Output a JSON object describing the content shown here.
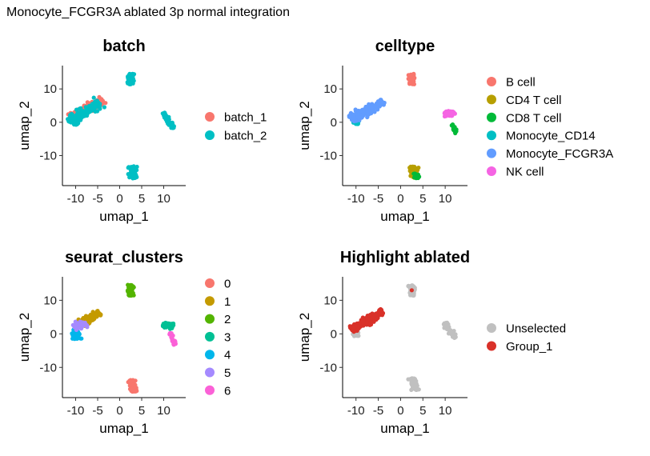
{
  "title": "Monocyte_FCGR3A ablated 3p normal integration",
  "chart_data": [
    {
      "type": "scatter",
      "title": "batch",
      "xlabel": "umap_1",
      "ylabel": "umap_2",
      "xlim": [
        -13,
        15
      ],
      "ylim": [
        -19,
        17
      ],
      "xticks": [
        -10,
        -5,
        0,
        5,
        10
      ],
      "yticks": [
        -10,
        0,
        10
      ],
      "legend_position": "right",
      "series": [
        {
          "name": "batch_1",
          "color": "#F8766D"
        },
        {
          "name": "batch_2",
          "color": "#00BFC4"
        }
      ],
      "clusters": [
        {
          "x": -7.5,
          "y": 4.0,
          "series": "batch_1"
        },
        {
          "x": -8.0,
          "y": 3.0,
          "series": "batch_2"
        },
        {
          "x": -10.0,
          "y": 0.5,
          "series": "batch_2"
        },
        {
          "x": 2.5,
          "y": 13.0,
          "series": "batch_2"
        },
        {
          "x": 11.0,
          "y": 0.5,
          "series": "batch_2"
        },
        {
          "x": 3.0,
          "y": -15.0,
          "series": "batch_2"
        }
      ]
    },
    {
      "type": "scatter",
      "title": "celltype",
      "xlabel": "umap_1",
      "ylabel": "umap_2",
      "xlim": [
        -13,
        15
      ],
      "ylim": [
        -19,
        17
      ],
      "xticks": [
        -10,
        -5,
        0,
        5,
        10
      ],
      "yticks": [
        -10,
        0,
        10
      ],
      "legend_position": "right",
      "series": [
        {
          "name": "B cell",
          "color": "#F8766D"
        },
        {
          "name": "CD4 T cell",
          "color": "#B79F00"
        },
        {
          "name": "CD8 T cell",
          "color": "#00BA38"
        },
        {
          "name": "Monocyte_CD14",
          "color": "#00BFC4"
        },
        {
          "name": "Monocyte_FCGR3A",
          "color": "#619CFF"
        },
        {
          "name": "NK cell",
          "color": "#F564E3"
        }
      ],
      "clusters": [
        {
          "x": 2.5,
          "y": 13.0,
          "series": "B cell"
        },
        {
          "x": 3.0,
          "y": -15.0,
          "series": "CD4 T cell"
        },
        {
          "x": 3.5,
          "y": -16.0,
          "series": "CD8 T cell"
        },
        {
          "x": 12.0,
          "y": -2.0,
          "series": "CD8 T cell"
        },
        {
          "x": -10.0,
          "y": 0.5,
          "series": "Monocyte_CD14"
        },
        {
          "x": -7.5,
          "y": 3.5,
          "series": "Monocyte_FCGR3A"
        },
        {
          "x": 11.0,
          "y": 2.5,
          "series": "NK cell"
        }
      ]
    },
    {
      "type": "scatter",
      "title": "seurat_clusters",
      "xlabel": "umap_1",
      "ylabel": "umap_2",
      "xlim": [
        -13,
        15
      ],
      "ylim": [
        -19,
        17
      ],
      "xticks": [
        -10,
        -5,
        0,
        5,
        10
      ],
      "yticks": [
        -10,
        0,
        10
      ],
      "legend_position": "right",
      "series": [
        {
          "name": "0",
          "color": "#F8766D"
        },
        {
          "name": "1",
          "color": "#C49A00"
        },
        {
          "name": "2",
          "color": "#53B400"
        },
        {
          "name": "3",
          "color": "#00C094"
        },
        {
          "name": "4",
          "color": "#00B6EB"
        },
        {
          "name": "5",
          "color": "#A58AFF"
        },
        {
          "name": "6",
          "color": "#FB61D7"
        }
      ],
      "clusters": [
        {
          "x": 3.0,
          "y": -15.5,
          "series": "0"
        },
        {
          "x": -7.0,
          "y": 4.5,
          "series": "1"
        },
        {
          "x": 2.5,
          "y": 13.0,
          "series": "2"
        },
        {
          "x": 11.0,
          "y": 2.5,
          "series": "3"
        },
        {
          "x": -10.0,
          "y": 0.0,
          "series": "4"
        },
        {
          "x": -9.0,
          "y": 2.5,
          "series": "5"
        },
        {
          "x": 12.0,
          "y": -1.5,
          "series": "6"
        }
      ]
    },
    {
      "type": "scatter",
      "title": "Highlight ablated",
      "xlabel": "umap_1",
      "ylabel": "umap_2",
      "xlim": [
        -13,
        15
      ],
      "ylim": [
        -19,
        17
      ],
      "xticks": [
        -10,
        -5,
        0,
        5,
        10
      ],
      "yticks": [
        -10,
        0,
        10
      ],
      "legend_position": "right",
      "series": [
        {
          "name": "Unselected",
          "color": "#C0C0C0"
        },
        {
          "name": "Group_1",
          "color": "#D93129"
        }
      ],
      "clusters": [
        {
          "x": -10.0,
          "y": 0.5,
          "series": "Unselected"
        },
        {
          "x": 2.5,
          "y": 13.0,
          "series": "Unselected"
        },
        {
          "x": 11.0,
          "y": 1.0,
          "series": "Unselected"
        },
        {
          "x": 3.0,
          "y": -15.0,
          "series": "Unselected"
        },
        {
          "x": -7.5,
          "y": 4.0,
          "series": "Group_1"
        },
        {
          "x": 2.5,
          "y": 13.0,
          "series": "Group_1"
        }
      ]
    }
  ]
}
